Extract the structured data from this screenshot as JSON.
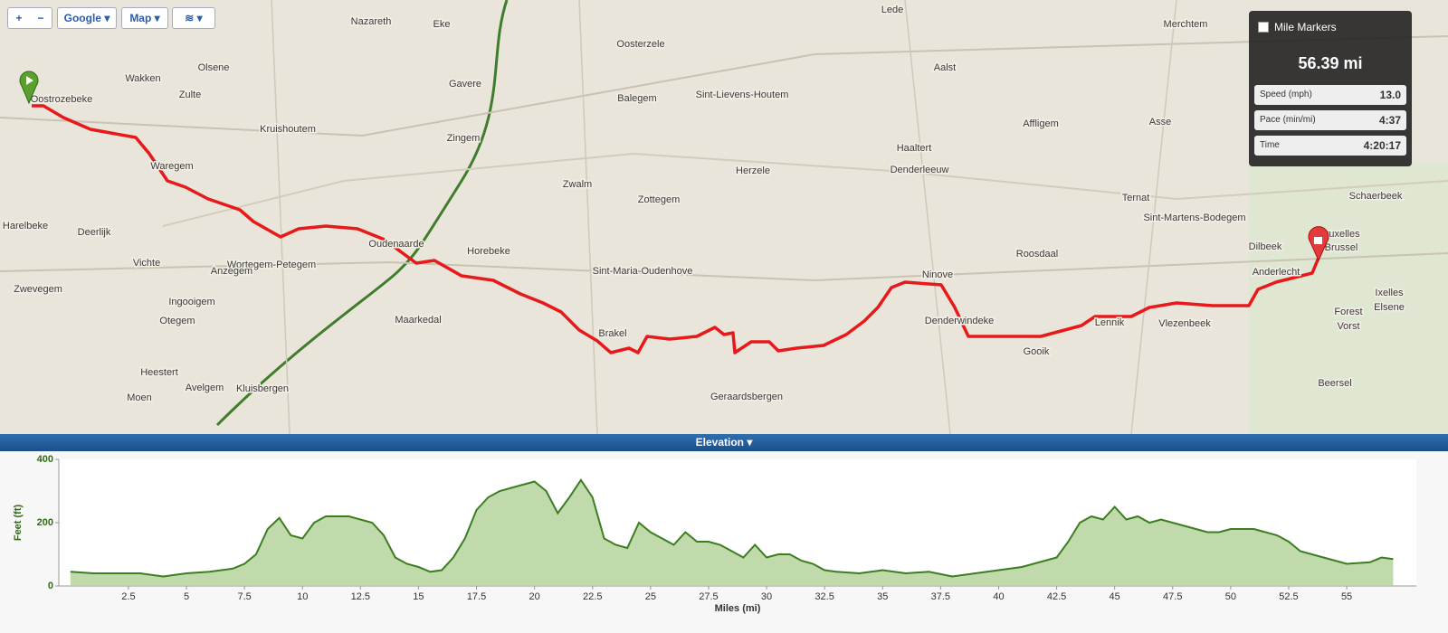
{
  "toolbar": {
    "zoom_in": "+",
    "zoom_out": "−",
    "provider": "Google",
    "map_type": "Map"
  },
  "map": {
    "labels": [
      "Nazareth",
      "Eke",
      "Oosterzele",
      "Lede",
      "Aalst",
      "Merchtem",
      "Zulte",
      "Olsene",
      "Wakken",
      "Oostrozebeke",
      "Waregem",
      "Kruishoutem",
      "Gavere",
      "Zingem",
      "Balegem",
      "Sint-Lievens-Houtem",
      "Herzele",
      "Zottegem",
      "Haaltert",
      "Denderleeuw",
      "Affligem",
      "Asse",
      "Oudenaarde",
      "Wortegem-Petegem",
      "Anzegem",
      "Deerlijk",
      "Harelbeke",
      "Vichte",
      "Zwevegem",
      "Ingooigem",
      "Otegem",
      "Heestert",
      "Moen",
      "Avelgem",
      "Kluisbergen",
      "Maarkedal",
      "Horebeke",
      "Sint-Maria-Oudenhove",
      "Brakel",
      "Geraardsbergen",
      "Ninove",
      "Denderwindeke",
      "Roosdaal",
      "Lennik",
      "Gooik",
      "Vlezenbeek",
      "Anderlecht",
      "Bruxelles",
      "Brussel",
      "Dilbeek",
      "Schaerbeek",
      "Forest",
      "Vorst",
      "Beersel",
      "Ixelles",
      "Elsene",
      "Sint-Martens-Bodegem",
      "Ternat",
      "Zwalm"
    ]
  },
  "stats_panel": {
    "mile_markers": "Mile Markers",
    "distance": "56.39 mi",
    "speed_label": "Speed (mph)",
    "speed": "13.0",
    "pace_label": "Pace (min/mi)",
    "pace": "4:37",
    "time_label": "Time",
    "time": "4:20:17"
  },
  "elevation_header": "Elevation",
  "chart_data": {
    "type": "area",
    "xlabel": "Miles (mi)",
    "ylabel": "Feet (ft)",
    "color": "#3b7d1f",
    "fill": "#b5d49c",
    "x": [
      0,
      1,
      2,
      3,
      4,
      5,
      6,
      7,
      7.5,
      8,
      8.5,
      9,
      9.5,
      10,
      10.5,
      11,
      12,
      13,
      13.5,
      14,
      14.5,
      15,
      15.5,
      16,
      16.5,
      17,
      17.5,
      18,
      18.5,
      19,
      19.5,
      20,
      20.5,
      21,
      21.5,
      22,
      22.5,
      23,
      23.5,
      24,
      24.5,
      25,
      25.5,
      26,
      26.5,
      27,
      27.5,
      28,
      28.5,
      29,
      29.5,
      30,
      30.5,
      31,
      31.5,
      32,
      32.5,
      33,
      34,
      35,
      36,
      37,
      38,
      39,
      40,
      41,
      42,
      42.5,
      43,
      43.5,
      44,
      44.5,
      45,
      45.5,
      46,
      46.5,
      47,
      48,
      49,
      49.5,
      50,
      51,
      52,
      52.5,
      53,
      54,
      55,
      56,
      56.5,
      57
    ],
    "values": [
      45,
      40,
      40,
      40,
      30,
      40,
      45,
      55,
      70,
      100,
      180,
      215,
      160,
      150,
      200,
      220,
      220,
      200,
      160,
      90,
      70,
      60,
      45,
      50,
      90,
      150,
      240,
      280,
      300,
      310,
      320,
      330,
      300,
      230,
      280,
      335,
      280,
      150,
      130,
      120,
      200,
      170,
      150,
      130,
      170,
      140,
      140,
      130,
      110,
      90,
      130,
      90,
      100,
      100,
      80,
      70,
      50,
      45,
      40,
      50,
      40,
      45,
      30,
      40,
      50,
      60,
      80,
      90,
      140,
      200,
      220,
      210,
      250,
      210,
      220,
      200,
      210,
      190,
      170,
      170,
      180,
      180,
      160,
      140,
      110,
      90,
      70,
      75,
      90,
      85
    ],
    "xlim": [
      -0.5,
      58
    ],
    "ylim": [
      0,
      400
    ],
    "xticks": [
      2.5,
      5,
      7.5,
      10,
      12.5,
      15,
      17.5,
      20,
      22.5,
      25,
      27.5,
      30,
      32.5,
      35,
      37.5,
      40,
      42.5,
      45,
      47.5,
      50,
      52.5,
      55
    ],
    "yticks": [
      0,
      200,
      400
    ]
  }
}
